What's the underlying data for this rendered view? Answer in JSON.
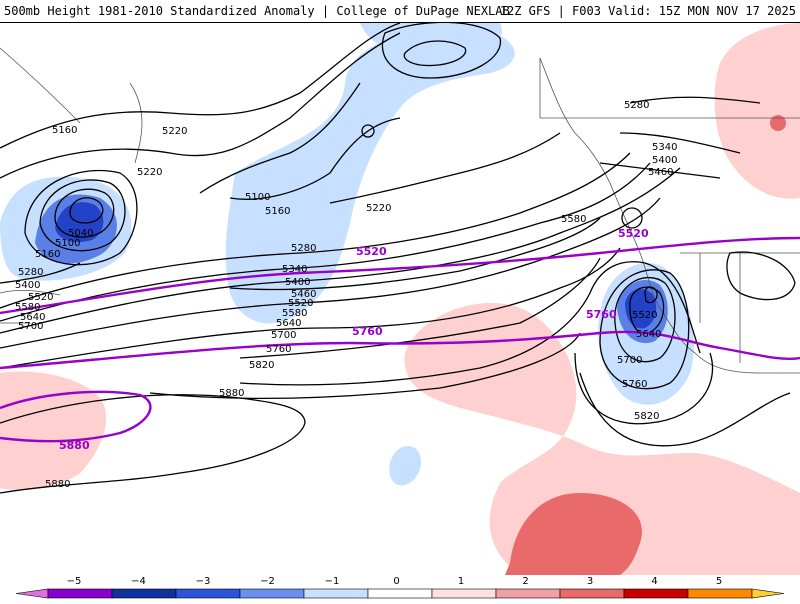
{
  "header": {
    "title_left": "500mb Height 1981-2010 Standardized Anomaly | College of DuPage NEXLAB",
    "title_right": "12Z GFS | F003 Valid: 15Z MON NOV 17 2025"
  },
  "map": {
    "contour_labels": [
      "5160",
      "5220",
      "5220",
      "5100",
      "5160",
      "5040",
      "5100",
      "5160",
      "5280",
      "5400",
      "5520",
      "5580",
      "5640",
      "5700",
      "5220",
      "5280",
      "5340",
      "5400",
      "5460",
      "5520",
      "5580",
      "5640",
      "5700",
      "5760",
      "5820",
      "5880",
      "5880",
      "5280",
      "5340",
      "5400",
      "5460",
      "5580",
      "5520",
      "5640",
      "5700",
      "5760",
      "5820"
    ],
    "highlight_labels": [
      "5520",
      "5520",
      "5760",
      "5760",
      "5880"
    ],
    "colors": {
      "contour": "#000000",
      "highlight_contour": "#9900cc",
      "neg1": "#c8e0ff",
      "neg2": "#6a8ff0",
      "neg3": "#2442c8",
      "pos1": "#ffd0d0",
      "pos2": "#f2a0a8",
      "pos3": "#e86a6a",
      "land_outline": "#444444"
    }
  },
  "colorbar": {
    "ticks": [
      "−5",
      "−4",
      "−3",
      "−2",
      "−1",
      "0",
      "1",
      "2",
      "3",
      "4",
      "5"
    ],
    "colors": [
      "#e070e0",
      "#8800cc",
      "#1030a0",
      "#2a55d8",
      "#6a8ff0",
      "#c8e0ff",
      "#ffffff",
      "#ffe0e0",
      "#f2a0a8",
      "#e86a6a",
      "#c80000",
      "#ff8800",
      "#ffcc33"
    ]
  }
}
